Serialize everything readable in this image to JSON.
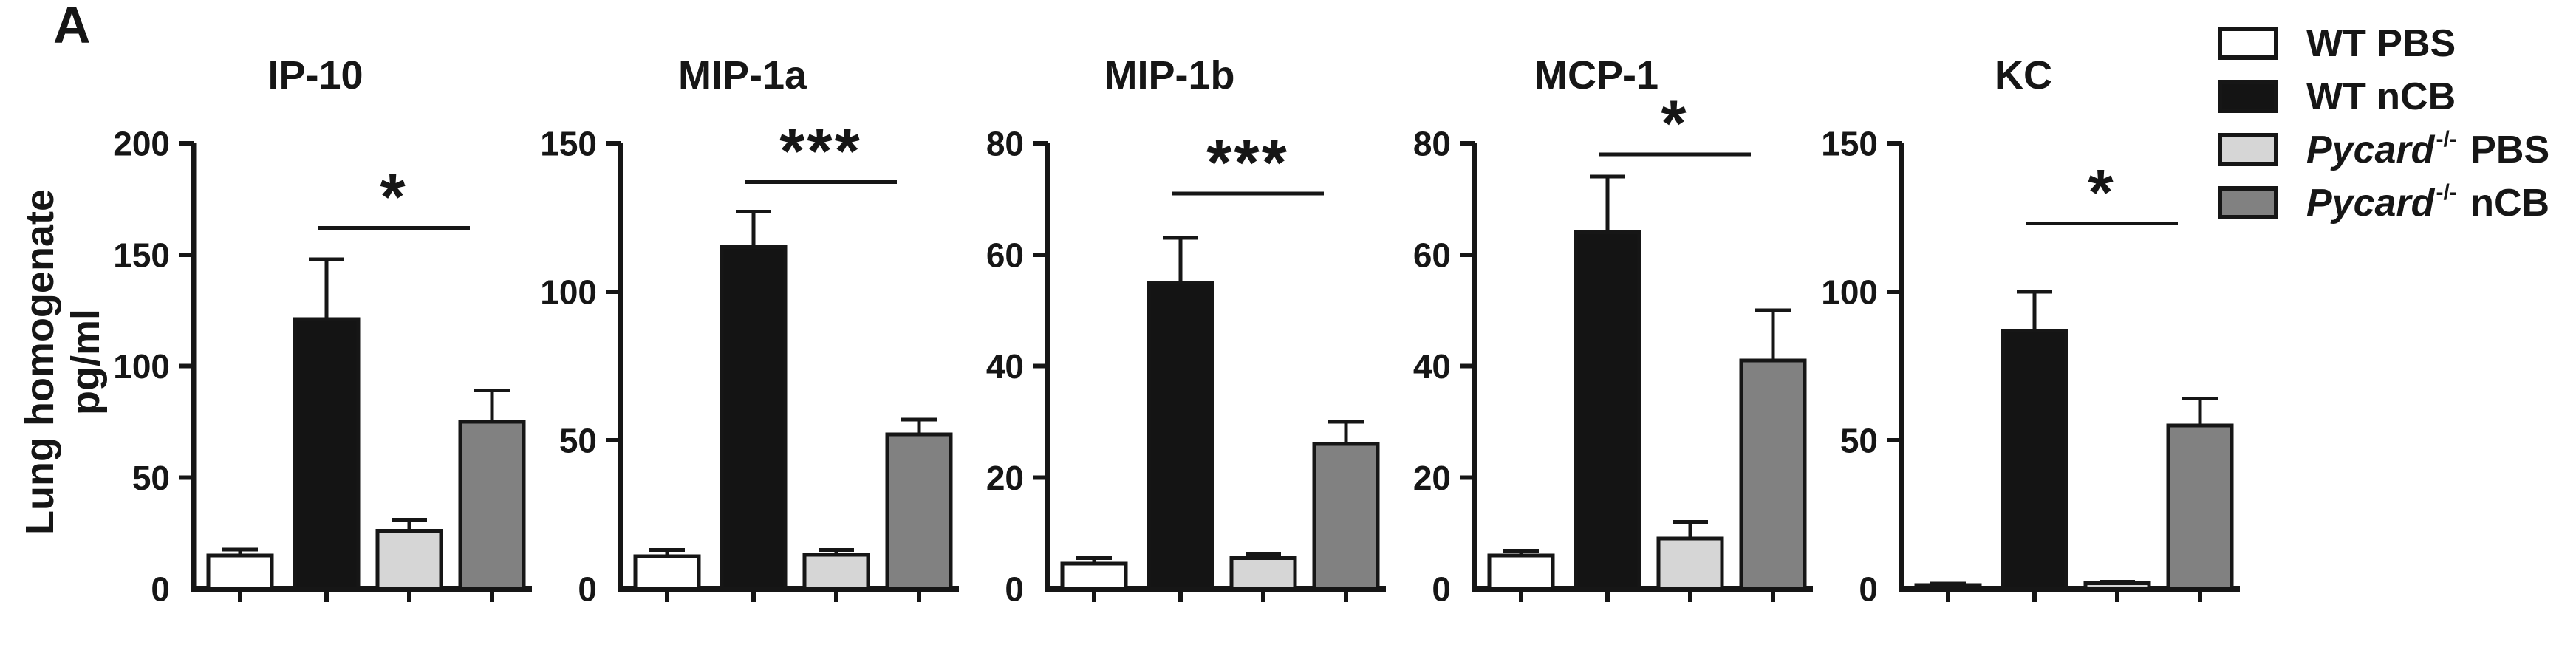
{
  "panel_label": "A",
  "y_axis_label": {
    "line1": "Lung homogenate",
    "line2": "pg/ml"
  },
  "colors": {
    "ink": "#161616",
    "background": "#ffffff",
    "bar_white": "#ffffff",
    "bar_black": "#141414",
    "bar_light_gray": "#d6d6d6",
    "bar_dark_gray": "#818181"
  },
  "groups": [
    {
      "name": "WT PBS",
      "genotype": "WT",
      "genotype_italic": false,
      "superscript": "",
      "treatment": "PBS",
      "fill": "#ffffff"
    },
    {
      "name": "WT nCB",
      "genotype": "WT",
      "genotype_italic": false,
      "superscript": "",
      "treatment": "nCB",
      "fill": "#141414"
    },
    {
      "name": "Pycard-/- PBS",
      "genotype": "Pycard",
      "genotype_italic": true,
      "superscript": "-/-",
      "treatment": "PBS",
      "fill": "#d6d6d6"
    },
    {
      "name": "Pycard-/- nCB",
      "genotype": "Pycard",
      "genotype_italic": true,
      "superscript": "-/-",
      "treatment": "nCB",
      "fill": "#818181"
    }
  ],
  "chart_data": [
    {
      "type": "bar",
      "title": "IP-10",
      "ylabel": "Lung homogenate pg/ml",
      "ylim": [
        0,
        200
      ],
      "yticks": [
        0,
        50,
        100,
        150,
        200
      ],
      "categories": [
        "WT PBS",
        "WT nCB",
        "Pycard-/- PBS",
        "Pycard-/- nCB"
      ],
      "values": [
        15,
        121,
        26,
        75
      ],
      "errors": [
        2.5,
        27,
        5,
        14
      ],
      "significance": {
        "label": "*",
        "between": [
          "WT nCB",
          "Pycard-/- nCB"
        ],
        "bar_indices": [
          1,
          3
        ],
        "line_y": 162
      }
    },
    {
      "type": "bar",
      "title": "MIP-1a",
      "ylabel": "Lung homogenate pg/ml",
      "ylim": [
        0,
        150
      ],
      "yticks": [
        0,
        50,
        100,
        150
      ],
      "categories": [
        "WT PBS",
        "WT nCB",
        "Pycard-/- PBS",
        "Pycard-/- nCB"
      ],
      "values": [
        11,
        115,
        11.5,
        52
      ],
      "errors": [
        2,
        12,
        1.5,
        5
      ],
      "significance": {
        "label": "***",
        "between": [
          "WT nCB",
          "Pycard-/- nCB"
        ],
        "bar_indices": [
          1,
          3
        ],
        "line_y": 137
      }
    },
    {
      "type": "bar",
      "title": "MIP-1b",
      "ylabel": "Lung homogenate pg/ml",
      "ylim": [
        0,
        80
      ],
      "yticks": [
        0,
        20,
        40,
        60,
        80
      ],
      "categories": [
        "WT PBS",
        "WT nCB",
        "Pycard-/- PBS",
        "Pycard-/- nCB"
      ],
      "values": [
        4.5,
        55,
        5.5,
        26
      ],
      "errors": [
        1,
        8,
        0.8,
        4
      ],
      "significance": {
        "label": "***",
        "between": [
          "WT nCB",
          "Pycard-/- nCB"
        ],
        "bar_indices": [
          1,
          3
        ],
        "line_y": 71
      }
    },
    {
      "type": "bar",
      "title": "MCP-1",
      "ylabel": "Lung homogenate pg/ml",
      "ylim": [
        0,
        80
      ],
      "yticks": [
        0,
        20,
        40,
        60,
        80
      ],
      "categories": [
        "WT PBS",
        "WT nCB",
        "Pycard-/- PBS",
        "Pycard-/- nCB"
      ],
      "values": [
        6,
        64,
        9,
        41
      ],
      "errors": [
        0.8,
        10,
        3,
        9
      ],
      "significance": {
        "label": "*",
        "between": [
          "WT nCB",
          "Pycard-/- nCB"
        ],
        "bar_indices": [
          1,
          3
        ],
        "line_y": 78
      }
    },
    {
      "type": "bar",
      "title": "KC",
      "ylabel": "Lung homogenate pg/ml",
      "ylim": [
        0,
        150
      ],
      "yticks": [
        0,
        50,
        100,
        150
      ],
      "categories": [
        "WT PBS",
        "WT nCB",
        "Pycard-/- PBS",
        "Pycard-/- nCB"
      ],
      "values": [
        1.3,
        87,
        1.9,
        55
      ],
      "errors": [
        0.4,
        13,
        0.5,
        9
      ],
      "significance": {
        "label": "*",
        "between": [
          "WT nCB",
          "Pycard-/- nCB"
        ],
        "bar_indices": [
          1,
          3
        ],
        "line_y": 123
      }
    }
  ]
}
